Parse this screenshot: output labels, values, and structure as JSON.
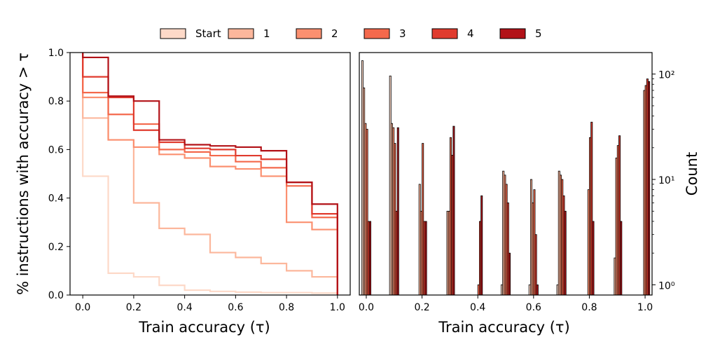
{
  "chart_data": [
    {
      "type": "line",
      "drawstyle": "steps-post",
      "xlabel": "Train accuracy (τ)",
      "ylabel": "% instructions with accuracy > τ",
      "xlim": [
        -0.05,
        1.05
      ],
      "ylim": [
        0.0,
        1.0
      ],
      "xticks": [
        0.0,
        0.2,
        0.4,
        0.6,
        0.8,
        1.0
      ],
      "yticks": [
        0.0,
        0.2,
        0.4,
        0.6,
        0.8,
        1.0
      ],
      "x": [
        0.0,
        0.1,
        0.2,
        0.3,
        0.4,
        0.5,
        0.6,
        0.7,
        0.8,
        0.9,
        1.0
      ],
      "series": [
        {
          "name": "Start",
          "color": "#fdd9c8",
          "initial": 1.0,
          "values": [
            0.49,
            0.09,
            0.075,
            0.04,
            0.02,
            0.015,
            0.012,
            0.01,
            0.01,
            0.008,
            0.0
          ]
        },
        {
          "name": "1",
          "color": "#fcb79c",
          "initial": 1.0,
          "values": [
            0.73,
            0.64,
            0.38,
            0.275,
            0.25,
            0.175,
            0.155,
            0.13,
            0.1,
            0.075,
            0.0
          ]
        },
        {
          "name": "2",
          "color": "#fb9070",
          "initial": 1.0,
          "values": [
            0.815,
            0.64,
            0.61,
            0.58,
            0.565,
            0.53,
            0.52,
            0.49,
            0.3,
            0.27,
            0.0
          ]
        },
        {
          "name": "3",
          "color": "#f4694c",
          "initial": 1.0,
          "values": [
            0.835,
            0.745,
            0.705,
            0.6,
            0.59,
            0.575,
            0.55,
            0.525,
            0.45,
            0.32,
            0.0
          ]
        },
        {
          "name": "4",
          "color": "#e03b2e",
          "initial": 1.0,
          "values": [
            0.9,
            0.815,
            0.68,
            0.63,
            0.605,
            0.6,
            0.575,
            0.56,
            0.465,
            0.335,
            0.0
          ]
        },
        {
          "name": "5",
          "color": "#b21218",
          "initial": 1.0,
          "values": [
            0.98,
            0.82,
            0.8,
            0.64,
            0.62,
            0.615,
            0.61,
            0.595,
            0.465,
            0.375,
            0.0
          ]
        }
      ]
    },
    {
      "type": "bar",
      "subtype": "histogram",
      "xlabel": "Train accuracy (τ)",
      "ylabel": "Count",
      "yscale": "log",
      "ylim": [
        0.8,
        160
      ],
      "xlim": [
        -0.025,
        1.025
      ],
      "xticks": [
        0.0,
        0.2,
        0.4,
        0.6,
        0.8,
        1.0
      ],
      "yticks": [
        1,
        10,
        100
      ],
      "yticklabels": [
        "10⁰",
        "10¹",
        "10²"
      ],
      "bin_centers": [
        0.0,
        0.0333,
        0.0667,
        0.1,
        0.1333,
        0.1667,
        0.2,
        0.2333,
        0.2667,
        0.3,
        0.3333,
        0.3667,
        0.4,
        0.4333,
        0.4667,
        0.5,
        0.5333,
        0.5667,
        0.6,
        0.6333,
        0.6667,
        0.7,
        0.7333,
        0.7667,
        0.8,
        0.8333,
        0.8667,
        0.9,
        0.9333,
        0.9667,
        1.0
      ],
      "series": [
        {
          "name": "Start",
          "color": "#fdd9c8",
          "values": [
            134,
            0,
            0,
            96,
            0,
            0,
            0,
            0,
            0,
            0,
            0,
            0,
            0,
            0,
            0,
            1,
            0,
            0,
            1,
            0,
            0,
            1,
            0,
            0,
            0,
            0,
            0,
            0,
            0,
            0,
            0
          ]
        },
        {
          "name": "1",
          "color": "#fcb79c",
          "values": [
            74,
            0,
            0,
            34,
            0,
            0,
            9,
            0,
            0,
            5,
            0,
            0,
            0,
            0,
            0,
            12,
            0,
            0,
            10,
            0,
            0,
            12,
            0,
            0,
            0,
            0,
            0,
            1.8,
            0,
            0,
            0
          ]
        },
        {
          "name": "2",
          "color": "#fb9070",
          "values": [
            34,
            0,
            0,
            31,
            0,
            0,
            5,
            0,
            0,
            5,
            0,
            0,
            0,
            0,
            0,
            11,
            0,
            0,
            6,
            0,
            0,
            11,
            0,
            0,
            8,
            0,
            0,
            16,
            0,
            0,
            70
          ]
        },
        {
          "name": "3",
          "color": "#f4694c",
          "values": [
            30,
            0,
            0,
            22,
            0,
            0,
            22,
            0,
            0,
            25,
            0,
            0,
            1,
            0,
            0,
            9,
            0,
            0,
            8,
            0,
            0,
            10,
            0,
            0,
            25,
            0,
            0,
            21,
            0,
            0,
            78
          ]
        },
        {
          "name": "4",
          "color": "#e03b2e",
          "values": [
            4,
            0,
            0,
            5,
            0,
            0,
            4,
            0,
            0,
            17,
            0,
            0,
            4,
            0,
            0,
            6,
            0,
            0,
            3,
            0,
            0,
            7,
            0,
            0,
            35,
            0,
            0,
            26,
            0,
            0,
            90
          ]
        },
        {
          "name": "5",
          "color": "#b21218",
          "values": [
            4,
            0,
            0,
            31,
            0,
            0,
            4,
            0,
            0,
            32,
            0,
            0,
            7,
            0,
            0,
            2,
            0,
            0,
            1,
            0,
            0,
            5,
            0,
            0,
            4,
            0,
            0,
            4,
            0,
            0,
            85
          ]
        }
      ]
    }
  ]
}
